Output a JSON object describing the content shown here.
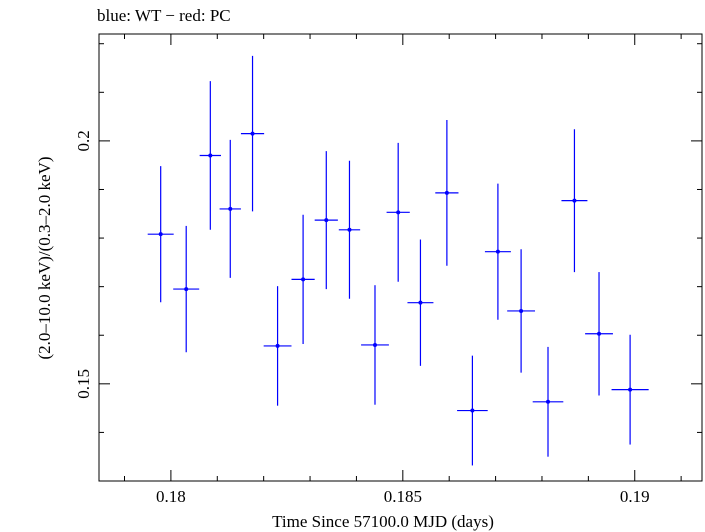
{
  "chart_data": {
    "type": "scatter",
    "title": "blue: WT − red: PC",
    "xlabel": "Time Since 57100.0 MJD (days)",
    "ylabel": "(2.0–10.0 keV)/(0.3–2.0 keV)",
    "xlim": [
      0.17845,
      0.19145
    ],
    "ylim": [
      0.13,
      0.222
    ],
    "x_ticks": [
      0.18,
      0.185,
      0.19
    ],
    "x_tick_labels": [
      "0.18",
      "0.185",
      "0.19"
    ],
    "y_ticks": [
      0.15,
      0.2
    ],
    "y_tick_labels": [
      "0.15",
      "0.2"
    ],
    "x_minor_step": 0.001,
    "y_minor_step": 0.01,
    "series": [
      {
        "color": "#0000ff",
        "points": [
          {
            "x": 0.17978,
            "y": 0.1808,
            "xerr": 0.00028,
            "yerr": 0.014
          },
          {
            "x": 0.18033,
            "y": 0.1695,
            "xerr": 0.00028,
            "yerr": 0.013
          },
          {
            "x": 0.18085,
            "y": 0.197,
            "xerr": 0.00023,
            "yerr": 0.0153
          },
          {
            "x": 0.18128,
            "y": 0.186,
            "xerr": 0.00023,
            "yerr": 0.0142
          },
          {
            "x": 0.18176,
            "y": 0.2015,
            "xerr": 0.00025,
            "yerr": 0.016
          },
          {
            "x": 0.1823,
            "y": 0.1578,
            "xerr": 0.0003,
            "yerr": 0.0123
          },
          {
            "x": 0.18285,
            "y": 0.1715,
            "xerr": 0.00025,
            "yerr": 0.0133
          },
          {
            "x": 0.18335,
            "y": 0.1837,
            "xerr": 0.00025,
            "yerr": 0.0142
          },
          {
            "x": 0.18385,
            "y": 0.1817,
            "xerr": 0.00023,
            "yerr": 0.0142
          },
          {
            "x": 0.1844,
            "y": 0.158,
            "xerr": 0.0003,
            "yerr": 0.0123
          },
          {
            "x": 0.1849,
            "y": 0.1853,
            "xerr": 0.00025,
            "yerr": 0.0143
          },
          {
            "x": 0.18538,
            "y": 0.1667,
            "xerr": 0.00028,
            "yerr": 0.013
          },
          {
            "x": 0.18595,
            "y": 0.1893,
            "xerr": 0.00025,
            "yerr": 0.015
          },
          {
            "x": 0.1865,
            "y": 0.1445,
            "xerr": 0.00033,
            "yerr": 0.0113
          },
          {
            "x": 0.18705,
            "y": 0.1772,
            "xerr": 0.00028,
            "yerr": 0.014
          },
          {
            "x": 0.18755,
            "y": 0.165,
            "xerr": 0.0003,
            "yerr": 0.0127
          },
          {
            "x": 0.18813,
            "y": 0.1463,
            "xerr": 0.00033,
            "yerr": 0.0113
          },
          {
            "x": 0.1887,
            "y": 0.1877,
            "xerr": 0.00028,
            "yerr": 0.0147
          },
          {
            "x": 0.18923,
            "y": 0.1603,
            "xerr": 0.0003,
            "yerr": 0.0127
          },
          {
            "x": 0.1899,
            "y": 0.1488,
            "xerr": 0.0004,
            "yerr": 0.0113
          }
        ]
      }
    ]
  }
}
